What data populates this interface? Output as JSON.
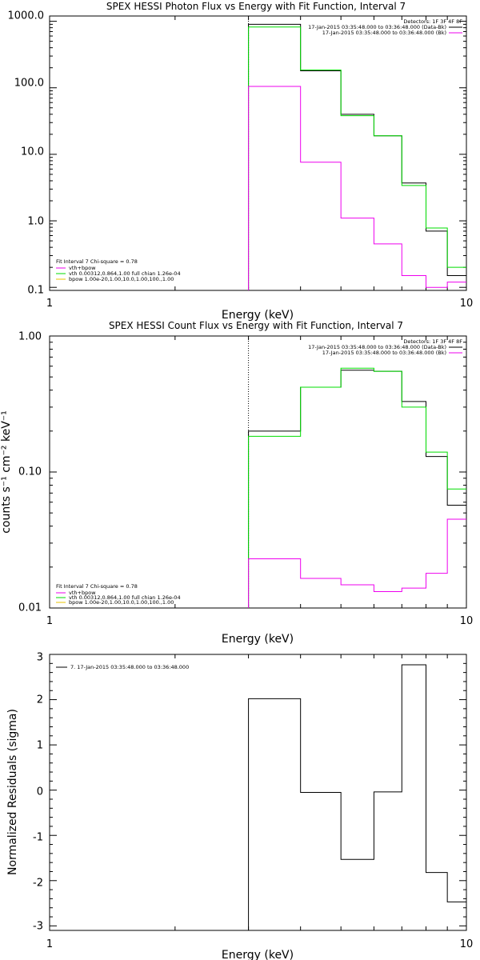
{
  "colors": {
    "data": "#000000",
    "total_fit": "#ee00ee",
    "vth": "#00dd00",
    "bpow": "#e8c400",
    "background": "#ee00ee"
  },
  "chart_data": [
    {
      "type": "line",
      "title": "SPEX HESSI Photon Flux vs Energy with Fit Function, Interval 7",
      "xlabel": "Energy (keV)",
      "ylabel": "",
      "xscale": "log",
      "yscale": "log",
      "xlim": [
        1,
        10
      ],
      "ylim": [
        0.09,
        1200
      ],
      "x_tick_labels": [
        "1",
        "10"
      ],
      "y_tick_labels": [
        "0.1",
        "1.0",
        "10.0",
        "100.0",
        "1000.0"
      ],
      "y_ticks": [
        0.1,
        1,
        10,
        100,
        1000
      ],
      "energy_edges": [
        3.0,
        4.0,
        5.0,
        6.0,
        7.0,
        8.0,
        9.0,
        10.0
      ],
      "start_marker_x": 3.0,
      "series": [
        {
          "name": "data",
          "color_key": "data",
          "values": [
            900,
            180,
            40,
            19,
            3.7,
            0.7,
            0.15
          ]
        },
        {
          "name": "vth",
          "color_key": "vth",
          "values": [
            820,
            185,
            38,
            19,
            3.4,
            0.78,
            0.2
          ]
        },
        {
          "name": "background",
          "color_key": "background",
          "values": [
            105,
            7.6,
            1.1,
            0.45,
            0.15,
            0.1,
            0.12
          ]
        }
      ],
      "legend_right": {
        "detectors": "Detectors: 1F 3F 4F 8F",
        "entries": [
          {
            "text": "17-Jan-2015 03:35:48.000 to 03:36:48.000 (Data-Bk)",
            "color_key": "data"
          },
          {
            "text": "17-Jan-2015 03:35:48.000 to 03:36:48.000 (Bk)",
            "color_key": "background"
          }
        ]
      },
      "legend_left": {
        "header": "Fit Interval 7   Chi-square = 0.78",
        "entries": [
          {
            "text": "vth+bpow",
            "color_key": "total_fit"
          },
          {
            "text": "vth 0.00312,0.864,1.00  full chian 1.26e-04",
            "color_key": "vth"
          },
          {
            "text": "bpow 1.00e-20,1.00,10.0,1.00,100.,1.00",
            "color_key": "bpow"
          }
        ]
      }
    },
    {
      "type": "line",
      "title": "SPEX HESSI Count Flux vs Energy with Fit Function, Interval 7",
      "xlabel": "Energy (keV)",
      "ylabel": "counts s⁻¹ cm⁻² keV⁻¹",
      "xscale": "log",
      "yscale": "log",
      "xlim": [
        1,
        10
      ],
      "ylim": [
        0.01,
        1.0
      ],
      "x_tick_labels": [
        "1",
        "10"
      ],
      "y_tick_labels": [
        "0.01",
        "0.10",
        "1.00"
      ],
      "y_ticks": [
        0.01,
        0.1,
        1.0
      ],
      "energy_edges": [
        3.0,
        4.0,
        5.0,
        6.0,
        7.0,
        8.0,
        9.0,
        10.0
      ],
      "start_marker_x": 3.0,
      "series": [
        {
          "name": "data",
          "color_key": "data",
          "values": [
            0.2,
            0.42,
            0.56,
            0.55,
            0.33,
            0.13,
            0.057
          ]
        },
        {
          "name": "vth",
          "color_key": "vth",
          "values": [
            0.183,
            0.42,
            0.58,
            0.55,
            0.3,
            0.14,
            0.075
          ]
        },
        {
          "name": "background",
          "color_key": "background",
          "values": [
            0.023,
            0.0165,
            0.0148,
            0.0132,
            0.014,
            0.018,
            0.045
          ]
        }
      ],
      "legend_right": {
        "detectors": "Detectors: 1F 3F 4F 8F",
        "entries": [
          {
            "text": "17-Jan-2015 03:35:48.000 to 03:36:48.000 (Data-Bk)",
            "color_key": "data"
          },
          {
            "text": "17-Jan-2015 03:35:48.000 to 03:36:48.000 (Bk)",
            "color_key": "background"
          }
        ]
      },
      "legend_left": {
        "header": "Fit Interval 7   Chi-square = 0.78",
        "entries": [
          {
            "text": "vth+bpow",
            "color_key": "total_fit"
          },
          {
            "text": "vth 0.00312,0.864,1.00  full chian 1.26e-04",
            "color_key": "vth"
          },
          {
            "text": "bpow 1.00e-20,1.00,10.0,1.00,100.,1.00",
            "color_key": "bpow"
          }
        ]
      }
    },
    {
      "type": "line",
      "title": "",
      "xlabel": "Energy (keV)",
      "ylabel": "Normalized Residuals (sigma)",
      "xscale": "log",
      "yscale": "linear",
      "xlim": [
        1,
        10
      ],
      "ylim": [
        -3.1,
        3.0
      ],
      "x_tick_labels": [
        "1",
        "10"
      ],
      "y_tick_labels": [
        "3",
        "2",
        "1",
        "0",
        "-1",
        "-2",
        "-3"
      ],
      "y_ticks": [
        3,
        2,
        1,
        0,
        -1,
        -2,
        -3
      ],
      "energy_edges": [
        3.0,
        4.0,
        5.0,
        6.0,
        7.0,
        8.0,
        9.0,
        10.0
      ],
      "series": [
        {
          "name": "7. 17-Jan-2015 03:35:48.000 to 03:36:48.000",
          "color_key": "data",
          "values": [
            2.02,
            -0.05,
            -1.53,
            -0.04,
            2.77,
            -1.82,
            -2.47
          ]
        }
      ],
      "legend_left": {
        "header": "",
        "entries": [
          {
            "text": "7. 17-Jan-2015 03:35:48.000 to 03:36:48.000",
            "color_key": "data"
          }
        ]
      }
    }
  ]
}
